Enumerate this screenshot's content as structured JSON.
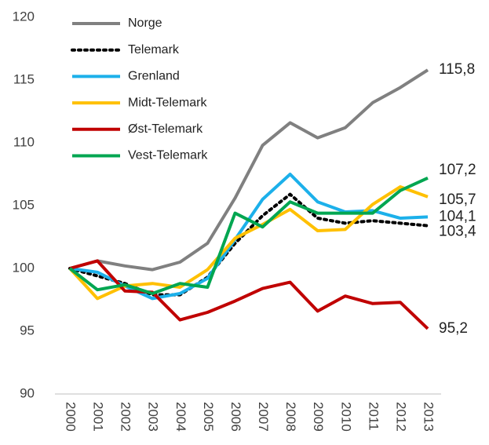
{
  "chart_data": {
    "type": "line",
    "categories": [
      "2000",
      "2001",
      "2002",
      "2003",
      "2004",
      "2005",
      "2006",
      "2007",
      "2008",
      "2009",
      "2010",
      "2011",
      "2012",
      "2013"
    ],
    "ylim": [
      90,
      120
    ],
    "yticks": [
      90,
      95,
      100,
      105,
      110,
      115,
      120
    ],
    "grid": false,
    "legend": "top-left",
    "series": [
      {
        "name": "Norge",
        "color": "#808080",
        "style": "solid",
        "values": [
          100,
          100.6,
          100.2,
          99.9,
          100.5,
          102,
          105.6,
          109.8,
          111.6,
          110.4,
          111.2,
          113.2,
          114.4,
          115.8
        ],
        "value_labels": [
          null,
          null,
          null,
          null,
          null,
          null,
          null,
          null,
          null,
          null,
          null,
          null,
          null,
          "115,8"
        ]
      },
      {
        "name": "Telemark",
        "color": "#000000",
        "style": "dotted",
        "values": [
          100,
          99.4,
          98.8,
          97.9,
          97.9,
          99.3,
          102,
          104.2,
          105.9,
          104,
          103.6,
          103.8,
          103.6,
          103.4
        ],
        "value_labels": [
          null,
          null,
          null,
          null,
          null,
          null,
          null,
          null,
          null,
          null,
          null,
          null,
          null,
          "103,4"
        ]
      },
      {
        "name": "Grenland",
        "color": "#1cb0ea",
        "style": "solid",
        "values": [
          100,
          99.7,
          98.6,
          97.6,
          98,
          99.2,
          102.3,
          105.5,
          107.5,
          105.3,
          104.5,
          104.6,
          104,
          104.1
        ],
        "value_labels": [
          null,
          null,
          null,
          null,
          null,
          null,
          null,
          null,
          null,
          null,
          null,
          null,
          null,
          "104,1"
        ]
      },
      {
        "name": "Midt-Telemark",
        "color": "#ffc000",
        "style": "solid",
        "values": [
          100,
          97.6,
          98.6,
          98.8,
          98.5,
          99.9,
          102.4,
          103.5,
          104.7,
          103,
          103.1,
          105.1,
          106.5,
          105.7
        ],
        "value_labels": [
          null,
          null,
          null,
          null,
          null,
          null,
          null,
          null,
          null,
          null,
          null,
          null,
          null,
          "105,7"
        ]
      },
      {
        "name": "Øst-Telemark",
        "color": "#c00000",
        "style": "solid",
        "values": [
          100,
          100.6,
          98.2,
          98.1,
          95.9,
          96.5,
          97.4,
          98.4,
          98.9,
          96.6,
          97.8,
          97.2,
          97.3,
          95.2
        ],
        "value_labels": [
          null,
          null,
          null,
          null,
          null,
          null,
          null,
          null,
          null,
          null,
          null,
          null,
          null,
          "95,2"
        ]
      },
      {
        "name": "Vest-Telemark",
        "color": "#00a651",
        "style": "solid",
        "values": [
          100,
          98.3,
          98.7,
          98,
          98.8,
          98.5,
          104.4,
          103.3,
          105.3,
          104.4,
          104.4,
          104.4,
          106.2,
          107.2
        ],
        "value_labels": [
          null,
          null,
          null,
          null,
          null,
          null,
          null,
          null,
          null,
          null,
          null,
          null,
          null,
          "107,2"
        ]
      }
    ]
  }
}
